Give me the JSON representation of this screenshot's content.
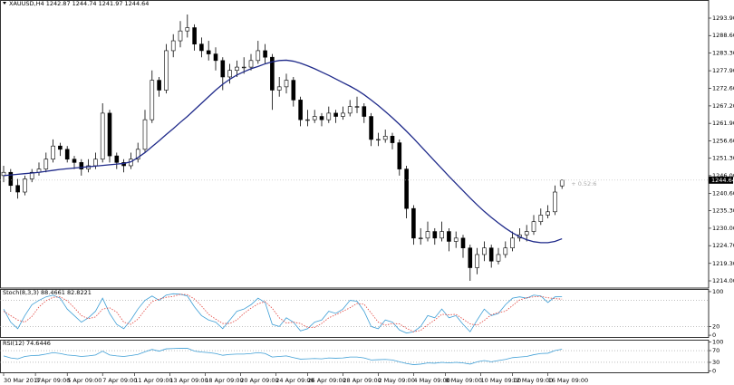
{
  "chart_data": [
    {
      "type": "candlestick",
      "title": "XAUUSD,H4  1242.87 1244.74 1241.97 1244.64",
      "annotation": "+ 0.52:6",
      "ylim": [
        1211.8,
        1299.41
      ],
      "yticks": [
        {
          "value": 1293.9,
          "label": "1293.90"
        },
        {
          "value": 1288.6,
          "label": "1288.60"
        },
        {
          "value": 1283.3,
          "label": "1283.30"
        },
        {
          "value": 1277.9,
          "label": "1277.90"
        },
        {
          "value": 1272.6,
          "label": "1272.60"
        },
        {
          "value": 1267.2,
          "label": "1267.20"
        },
        {
          "value": 1261.9,
          "label": "1261.90"
        },
        {
          "value": 1256.6,
          "label": "1256.60"
        },
        {
          "value": 1251.3,
          "label": "1251.30"
        },
        {
          "value": 1246.0,
          "label": "1246.00"
        },
        {
          "value": 1240.6,
          "label": "1240.60"
        },
        {
          "value": 1235.3,
          "label": "1235.30"
        },
        {
          "value": 1230.0,
          "label": "1230.00"
        },
        {
          "value": 1224.7,
          "label": "1224.70"
        },
        {
          "value": 1219.3,
          "label": "1219.30"
        },
        {
          "value": 1214.0,
          "label": "1214.00"
        }
      ],
      "xticks": [
        {
          "value": 0,
          "label": "30 Mar 2017"
        },
        {
          "value": 4.5,
          "label": "3 Apr 09:00"
        },
        {
          "value": 9,
          "label": "5 Apr 09:00"
        },
        {
          "value": 14,
          "label": "7 Apr 09:00"
        },
        {
          "value": 18.5,
          "label": "11 Apr 09:00"
        },
        {
          "value": 23.5,
          "label": "13 Apr 09:00"
        },
        {
          "value": 28.5,
          "label": "18 Apr 09:00"
        },
        {
          "value": 33.5,
          "label": "20 Apr 09:00"
        },
        {
          "value": 38.5,
          "label": "24 Apr 09:00"
        },
        {
          "value": 43,
          "label": "26 Apr 09:00"
        },
        {
          "value": 48,
          "label": "28 Apr 09:00"
        },
        {
          "value": 53,
          "label": "2 May 09:00"
        },
        {
          "value": 58,
          "label": "4 May 09:00"
        },
        {
          "value": 62.5,
          "label": "8 May 09:00"
        },
        {
          "value": 67.5,
          "label": "10 May 09:00"
        },
        {
          "value": 72,
          "label": "12 May 09:00"
        },
        {
          "value": 77,
          "label": "16 May 09:00"
        }
      ],
      "open": [
        1246,
        1247,
        1243,
        1241,
        1245,
        1247,
        1248,
        1251,
        1255,
        1254,
        1251,
        1250,
        1248,
        1249,
        1251,
        1265,
        1252,
        1250,
        1249,
        1251,
        1254,
        1263,
        1275,
        1272,
        1284,
        1287,
        1290,
        1291,
        1286,
        1284,
        1283,
        1281,
        1276,
        1278,
        1279,
        1279,
        1281,
        1284,
        1282,
        1272,
        1273,
        1275,
        1269,
        1263,
        1263,
        1264,
        1263,
        1265,
        1264,
        1265,
        1267,
        1267,
        1264,
        1257,
        1257,
        1258,
        1256,
        1248,
        1236,
        1227,
        1227,
        1229,
        1227,
        1229,
        1226,
        1227,
        1224,
        1218,
        1222,
        1224,
        1220,
        1222,
        1224,
        1227,
        1228,
        1229,
        1232,
        1234,
        1235,
        1242.87
      ],
      "high": [
        1249,
        1248,
        1245,
        1246,
        1248,
        1250,
        1253,
        1257,
        1256,
        1255,
        1252,
        1251,
        1251,
        1253,
        1268,
        1266,
        1253,
        1251,
        1253,
        1256,
        1266,
        1278,
        1276,
        1286,
        1289,
        1293,
        1295,
        1292,
        1288,
        1287,
        1285,
        1282,
        1280,
        1281,
        1282,
        1283,
        1287,
        1286,
        1283,
        1276,
        1277,
        1276,
        1270,
        1266,
        1266,
        1265,
        1267,
        1266,
        1267,
        1269,
        1270,
        1268,
        1265,
        1259,
        1260,
        1259,
        1257,
        1249,
        1237,
        1230,
        1232,
        1230,
        1232,
        1230,
        1229,
        1228,
        1225,
        1224,
        1226,
        1225,
        1224,
        1226,
        1229,
        1230,
        1231,
        1234,
        1236,
        1237,
        1243,
        1244.74
      ],
      "low": [
        1244,
        1241,
        1239,
        1240,
        1244,
        1246,
        1247,
        1250,
        1252,
        1250,
        1248,
        1246,
        1247,
        1248,
        1250,
        1250,
        1248,
        1247,
        1248,
        1250,
        1253,
        1262,
        1270,
        1271,
        1282,
        1285,
        1288,
        1284,
        1282,
        1281,
        1278,
        1272,
        1274,
        1276,
        1277,
        1278,
        1280,
        1280,
        1266,
        1270,
        1271,
        1267,
        1261,
        1261,
        1262,
        1261,
        1262,
        1262,
        1263,
        1264,
        1265,
        1262,
        1255,
        1255,
        1256,
        1254,
        1246,
        1233,
        1225,
        1225,
        1226,
        1225,
        1226,
        1223,
        1224,
        1221,
        1214,
        1216,
        1220,
        1218,
        1219,
        1221,
        1223,
        1226,
        1226,
        1228,
        1231,
        1233,
        1234,
        1241.97
      ],
      "close": [
        1247,
        1243,
        1241,
        1245,
        1247,
        1248,
        1251,
        1255,
        1254,
        1251,
        1250,
        1248,
        1249,
        1251,
        1265,
        1252,
        1250,
        1249,
        1251,
        1254,
        1263,
        1275,
        1272,
        1284,
        1287,
        1290,
        1291,
        1286,
        1284,
        1283,
        1281,
        1276,
        1278,
        1279,
        1279,
        1281,
        1284,
        1282,
        1272,
        1273,
        1275,
        1269,
        1263,
        1263,
        1264,
        1263,
        1265,
        1264,
        1265,
        1267,
        1267,
        1264,
        1257,
        1257,
        1258,
        1256,
        1248,
        1236,
        1227,
        1227,
        1229,
        1227,
        1229,
        1226,
        1227,
        1224,
        1218,
        1222,
        1224,
        1220,
        1222,
        1224,
        1227,
        1228,
        1229,
        1232,
        1234,
        1235,
        1241,
        1244.64
      ],
      "overlay": {
        "color": "#1f2a8a",
        "values": [
          1246,
          1246.2,
          1246.4,
          1246.6,
          1246.8,
          1247,
          1247.3,
          1247.6,
          1247.9,
          1248.1,
          1248.3,
          1248.5,
          1248.7,
          1248.9,
          1249.1,
          1249.3,
          1249.5,
          1249.7,
          1250.2,
          1251.5,
          1253,
          1254.8,
          1256.6,
          1258.5,
          1260.3,
          1262.2,
          1264,
          1266,
          1268,
          1270,
          1272,
          1273.8,
          1275.3,
          1276.6,
          1277.6,
          1278.5,
          1279.2,
          1280,
          1280.6,
          1281,
          1281.1,
          1280.8,
          1280.2,
          1279.4,
          1278.5,
          1277.5,
          1276.5,
          1275.4,
          1274.3,
          1273.2,
          1272,
          1270.6,
          1269,
          1267.3,
          1265.5,
          1263.6,
          1261.6,
          1259.5,
          1257.3,
          1255,
          1252.7,
          1250.4,
          1248.1,
          1245.8,
          1243.6,
          1241.4,
          1239.2,
          1237.1,
          1235.1,
          1233.3,
          1231.6,
          1230,
          1228.6,
          1227.4,
          1226.5,
          1225.9,
          1225.6,
          1225.6,
          1226,
          1226.8
        ]
      }
    },
    {
      "type": "line",
      "title": "Stoch(8,3,3) 88.4661 82.8221",
      "ylim": [
        -4,
        104
      ],
      "yticks": [
        100,
        20,
        0
      ],
      "levels": [
        20,
        80
      ],
      "series": [
        {
          "color": "#3f9fd6",
          "values": [
            60,
            30,
            15,
            45,
            70,
            80,
            88,
            92,
            85,
            60,
            45,
            30,
            40,
            55,
            85,
            50,
            25,
            15,
            35,
            60,
            80,
            90,
            80,
            92,
            95,
            94,
            90,
            65,
            45,
            35,
            30,
            15,
            35,
            55,
            60,
            70,
            85,
            75,
            25,
            20,
            40,
            30,
            10,
            15,
            30,
            35,
            55,
            50,
            60,
            80,
            78,
            55,
            20,
            15,
            35,
            30,
            12,
            5,
            8,
            20,
            45,
            40,
            60,
            40,
            45,
            25,
            8,
            35,
            60,
            45,
            50,
            70,
            85,
            88,
            85,
            92,
            90,
            75,
            88,
            88.4661
          ]
        },
        {
          "color": "#e0403a",
          "dash": true,
          "values": [
            55,
            45,
            35,
            30,
            43,
            65,
            79,
            87,
            88,
            79,
            63,
            45,
            38,
            42,
            60,
            63,
            53,
            30,
            25,
            37,
            58,
            77,
            83,
            87,
            89,
            94,
            93,
            83,
            67,
            48,
            37,
            27,
            27,
            35,
            50,
            62,
            72,
            77,
            62,
            40,
            28,
            30,
            27,
            18,
            18,
            27,
            40,
            47,
            55,
            63,
            73,
            71,
            51,
            30,
            23,
            27,
            26,
            16,
            8,
            11,
            24,
            35,
            48,
            47,
            48,
            37,
            26,
            23,
            34,
            47,
            52,
            55,
            68,
            81,
            86,
            88,
            89,
            86,
            84,
            82.8221
          ]
        }
      ]
    },
    {
      "type": "line",
      "title": "RSI(12) 74.6446",
      "ylim": [
        -4,
        104
      ],
      "yticks": [
        100,
        70,
        30,
        0
      ],
      "levels": [
        30,
        70
      ],
      "series": [
        {
          "color": "#3f9fd6",
          "values": [
            52,
            45,
            42,
            50,
            53,
            54,
            58,
            63,
            60,
            55,
            53,
            50,
            52,
            55,
            68,
            55,
            52,
            50,
            53,
            57,
            66,
            74,
            68,
            76,
            77,
            78,
            78,
            68,
            65,
            63,
            60,
            54,
            57,
            58,
            58,
            60,
            63,
            60,
            48,
            50,
            52,
            46,
            41,
            42,
            43,
            42,
            45,
            44,
            45,
            48,
            48,
            45,
            38,
            39,
            40,
            38,
            32,
            26,
            22,
            24,
            28,
            27,
            30,
            28,
            30,
            28,
            24,
            32,
            36,
            32,
            36,
            40,
            46,
            48,
            50,
            56,
            60,
            61,
            70,
            74.6446
          ]
        }
      ]
    }
  ]
}
